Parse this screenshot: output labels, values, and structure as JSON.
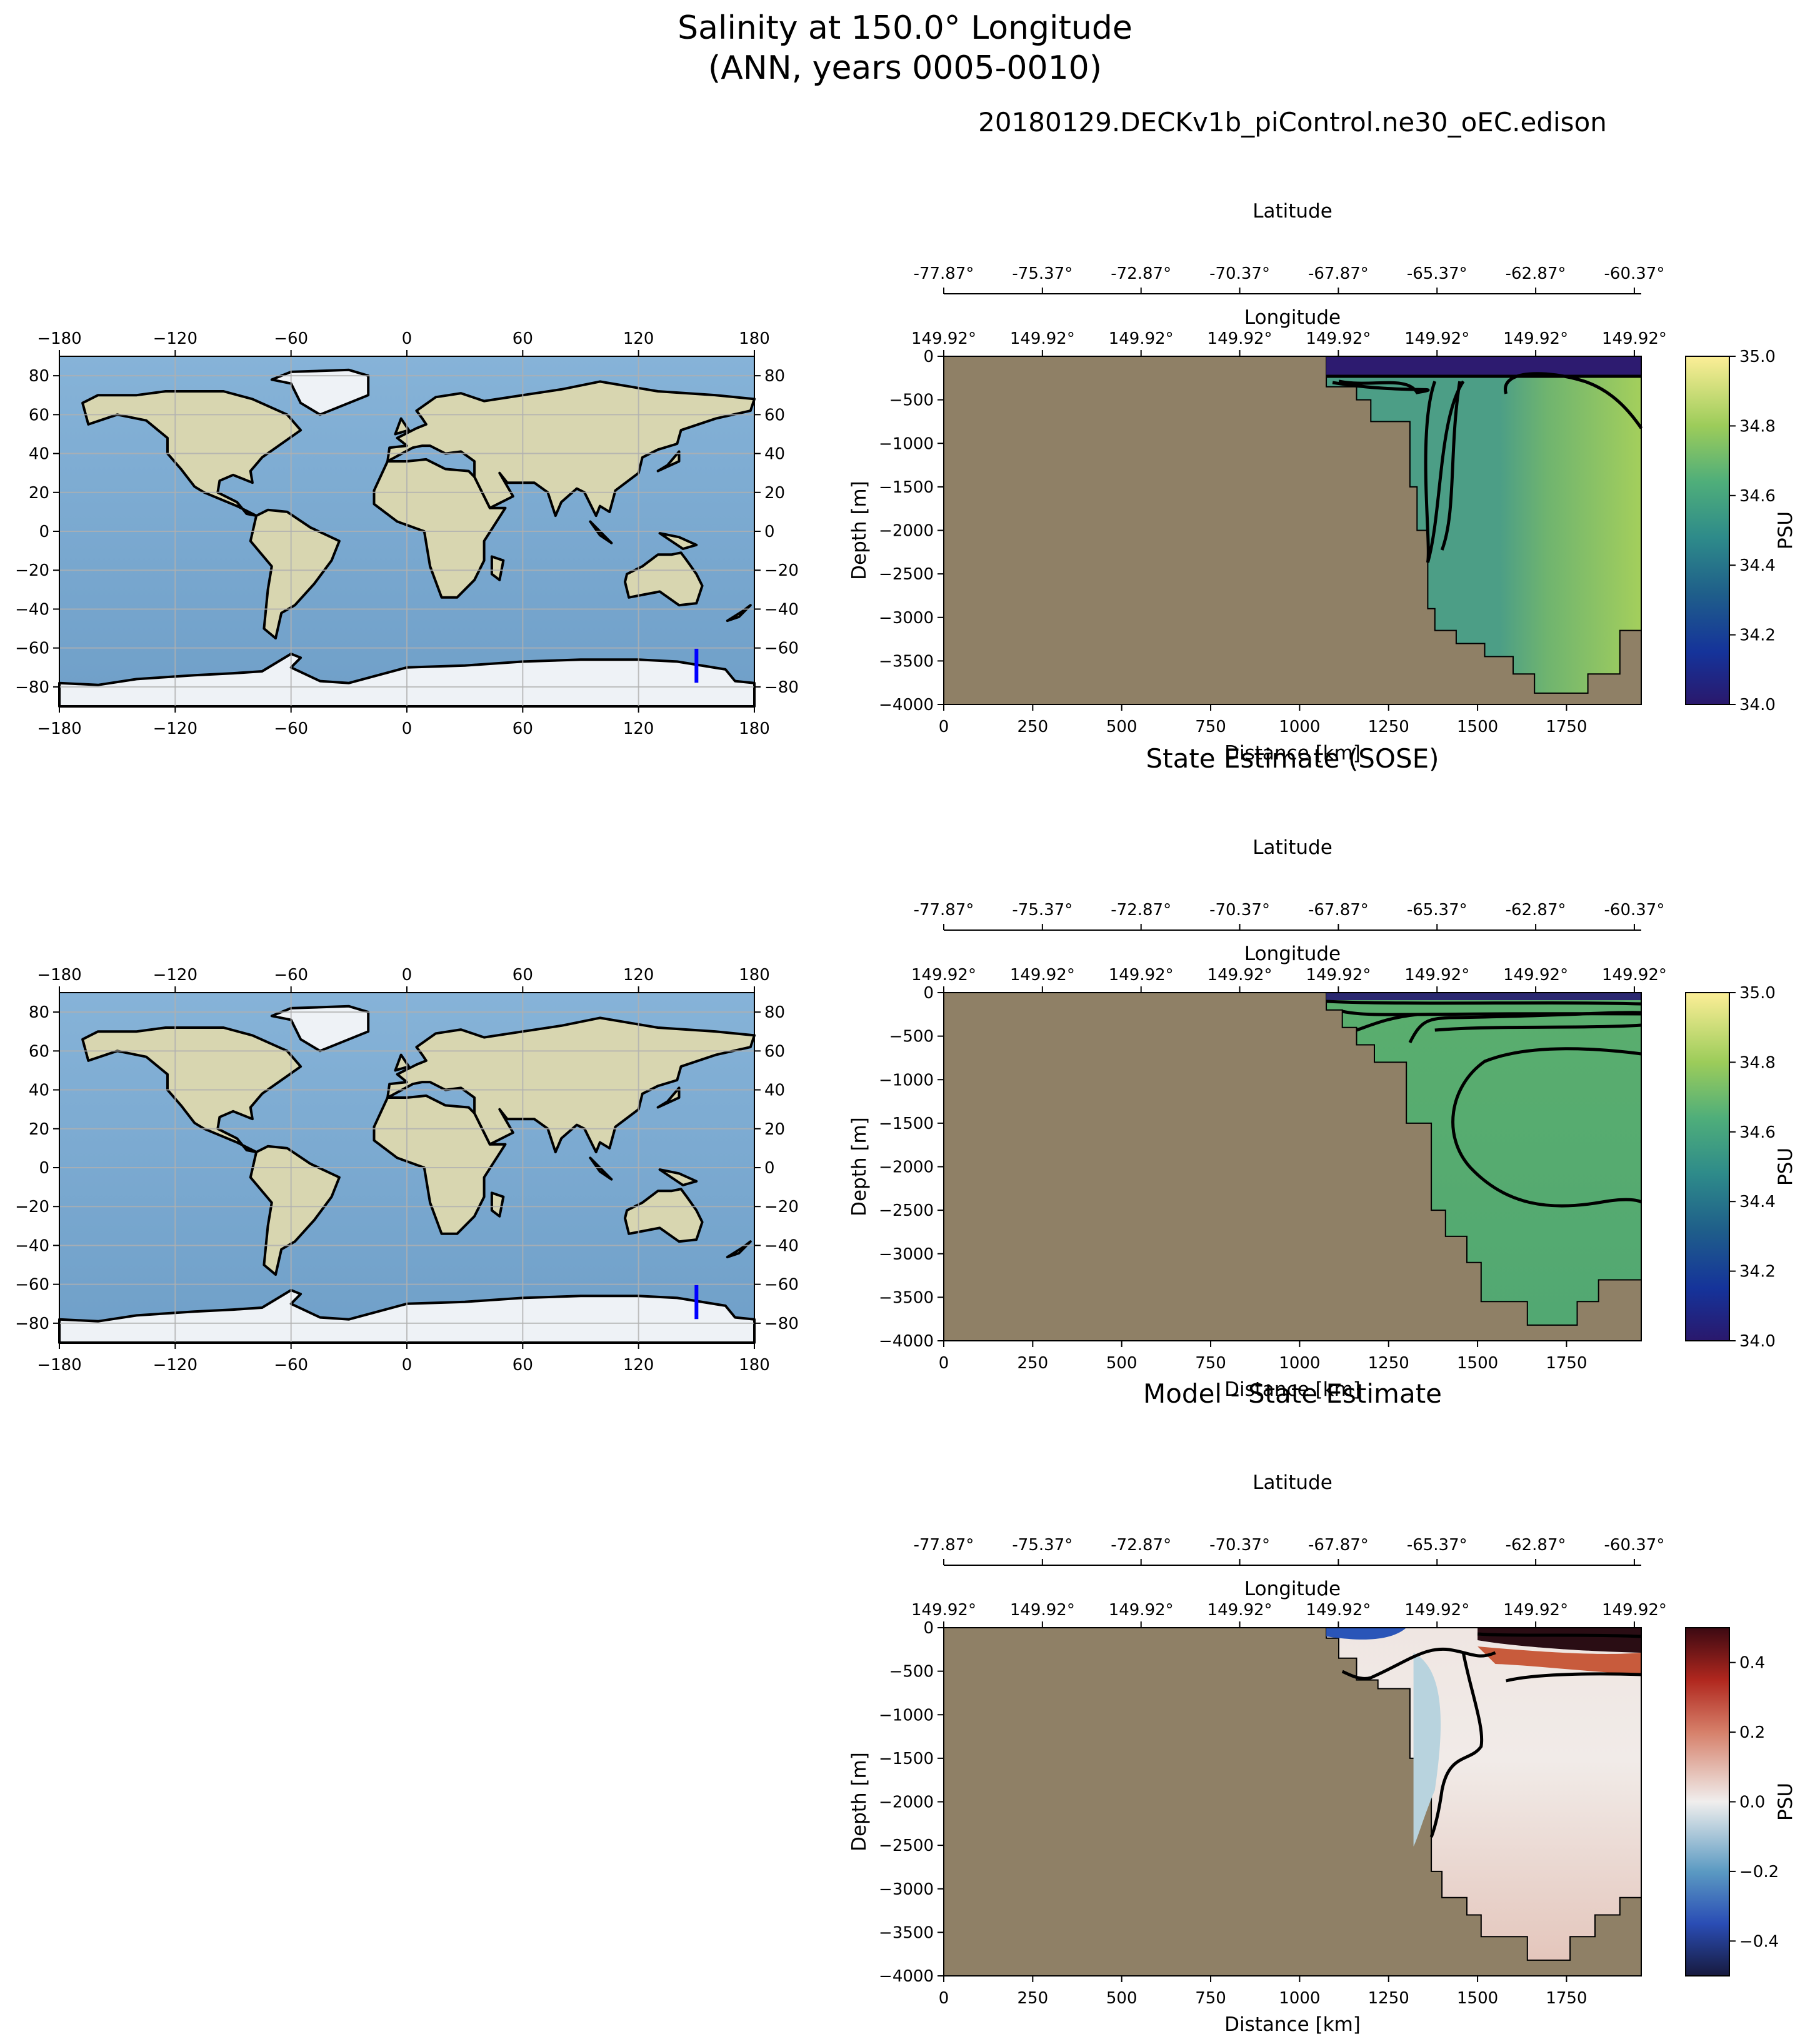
{
  "figure": {
    "suptitle_line1": "Salinity at 150.0° Longitude",
    "suptitle_line2": "(ANN, years 0005-0010)"
  },
  "colors": {
    "land": "#8f8066",
    "ocean_map": "#7aa6cc",
    "map_land": "#d8d6b0",
    "map_ice": "#eef2f6",
    "transect_line": "#0000ff"
  },
  "maps": {
    "xticks": [
      "−180",
      "−120",
      "−60",
      "0",
      "60",
      "120",
      "180"
    ],
    "yticks": [
      "80",
      "60",
      "40",
      "20",
      "0",
      "−20",
      "−40",
      "−60",
      "−80"
    ],
    "transect": {
      "lon": 150,
      "lat_start": -77.87,
      "lat_end": -60.37
    }
  },
  "chart_data": [
    {
      "type": "heatmap",
      "title": "20180129.DECKv1b_piControl.ne30_oEC.edison",
      "xlabel": "Distance [km]",
      "ylabel": "Depth [m]",
      "top_axis1_label": "Latitude",
      "top_axis2_label": "Longitude",
      "lat_ticks": [
        "-77.87°",
        "-75.37°",
        "-72.87°",
        "-70.37°",
        "-67.87°",
        "-65.37°",
        "-62.87°",
        "-60.37°"
      ],
      "lon_ticks": [
        "149.92°",
        "149.92°",
        "149.92°",
        "149.92°",
        "149.92°",
        "149.92°",
        "149.92°",
        "149.92°"
      ],
      "xticks": [
        "0",
        "250",
        "500",
        "750",
        "1000",
        "1250",
        "1500",
        "1750"
      ],
      "yticks": [
        "0",
        "−500",
        "−1000",
        "−1500",
        "−2000",
        "−2500",
        "−3000",
        "−3500",
        "−4000"
      ],
      "xlim": [
        0,
        1960
      ],
      "ylim": [
        -4000,
        0
      ],
      "colorbar": {
        "label": "PSU",
        "ticks": [
          "34.0",
          "34.2",
          "34.4",
          "34.6",
          "34.8",
          "35.0"
        ],
        "vmin": 34.0,
        "vmax": 35.0,
        "colormap": "haline"
      },
      "ocean_boundary_km_depth": [
        [
          1075,
          0
        ],
        [
          1075,
          -350
        ],
        [
          1160,
          -350
        ],
        [
          1160,
          -500
        ],
        [
          1200,
          -500
        ],
        [
          1200,
          -750
        ],
        [
          1310,
          -750
        ],
        [
          1310,
          -1500
        ],
        [
          1330,
          -1500
        ],
        [
          1330,
          -2000
        ],
        [
          1360,
          -2000
        ],
        [
          1360,
          -2900
        ],
        [
          1380,
          -2900
        ],
        [
          1380,
          -3150
        ],
        [
          1440,
          -3150
        ],
        [
          1440,
          -3300
        ],
        [
          1520,
          -3300
        ],
        [
          1520,
          -3450
        ],
        [
          1600,
          -3450
        ],
        [
          1600,
          -3650
        ],
        [
          1660,
          -3650
        ],
        [
          1660,
          -3870
        ],
        [
          1810,
          -3870
        ],
        [
          1810,
          -3650
        ],
        [
          1900,
          -3650
        ],
        [
          1900,
          -3150
        ],
        [
          1960,
          -3150
        ],
        [
          1960,
          0
        ]
      ]
    },
    {
      "type": "heatmap",
      "title": "State Estimate (SOSE)",
      "xlabel": "Distance [km]",
      "ylabel": "Depth [m]",
      "top_axis1_label": "Latitude",
      "top_axis2_label": "Longitude",
      "lat_ticks": [
        "-77.87°",
        "-75.37°",
        "-72.87°",
        "-70.37°",
        "-67.87°",
        "-65.37°",
        "-62.87°",
        "-60.37°"
      ],
      "lon_ticks": [
        "149.92°",
        "149.92°",
        "149.92°",
        "149.92°",
        "149.92°",
        "149.92°",
        "149.92°",
        "149.92°"
      ],
      "xticks": [
        "0",
        "250",
        "500",
        "750",
        "1000",
        "1250",
        "1500",
        "1750"
      ],
      "yticks": [
        "0",
        "−500",
        "−1000",
        "−1500",
        "−2000",
        "−2500",
        "−3000",
        "−3500",
        "−4000"
      ],
      "xlim": [
        0,
        1960
      ],
      "ylim": [
        -4000,
        0
      ],
      "colorbar": {
        "label": "PSU",
        "ticks": [
          "34.0",
          "34.2",
          "34.4",
          "34.6",
          "34.8",
          "35.0"
        ],
        "vmin": 34.0,
        "vmax": 35.0,
        "colormap": "haline"
      },
      "ocean_boundary_km_depth": [
        [
          1075,
          0
        ],
        [
          1075,
          -200
        ],
        [
          1120,
          -200
        ],
        [
          1120,
          -400
        ],
        [
          1160,
          -400
        ],
        [
          1160,
          -600
        ],
        [
          1210,
          -600
        ],
        [
          1210,
          -800
        ],
        [
          1300,
          -800
        ],
        [
          1300,
          -1500
        ],
        [
          1370,
          -1500
        ],
        [
          1370,
          -2500
        ],
        [
          1410,
          -2500
        ],
        [
          1410,
          -2800
        ],
        [
          1470,
          -2800
        ],
        [
          1470,
          -3100
        ],
        [
          1510,
          -3100
        ],
        [
          1510,
          -3550
        ],
        [
          1640,
          -3550
        ],
        [
          1640,
          -3820
        ],
        [
          1780,
          -3820
        ],
        [
          1780,
          -3550
        ],
        [
          1840,
          -3550
        ],
        [
          1840,
          -3300
        ],
        [
          1960,
          -3300
        ],
        [
          1960,
          0
        ]
      ]
    },
    {
      "type": "heatmap",
      "title": "Model - State Estimate",
      "xlabel": "Distance [km]",
      "ylabel": "Depth [m]",
      "top_axis1_label": "Latitude",
      "top_axis2_label": "Longitude",
      "lat_ticks": [
        "-77.87°",
        "-75.37°",
        "-72.87°",
        "-70.37°",
        "-67.87°",
        "-65.37°",
        "-62.87°",
        "-60.37°"
      ],
      "lon_ticks": [
        "149.92°",
        "149.92°",
        "149.92°",
        "149.92°",
        "149.92°",
        "149.92°",
        "149.92°",
        "149.92°"
      ],
      "xticks": [
        "0",
        "250",
        "500",
        "750",
        "1000",
        "1250",
        "1500",
        "1750"
      ],
      "yticks": [
        "0",
        "−500",
        "−1000",
        "−1500",
        "−2000",
        "−2500",
        "−3000",
        "−3500",
        "−4000"
      ],
      "xlim": [
        0,
        1960
      ],
      "ylim": [
        -4000,
        0
      ],
      "colorbar": {
        "label": "PSU",
        "ticks": [
          "0.4",
          "0.2",
          "0.0",
          "−0.2",
          "−0.4"
        ],
        "tick_values": [
          0.4,
          0.2,
          0.0,
          -0.2,
          -0.4
        ],
        "vmin": -0.5,
        "vmax": 0.5,
        "colormap": "balance"
      },
      "ocean_boundary_km_depth": [
        [
          1075,
          0
        ],
        [
          1075,
          -120
        ],
        [
          1110,
          -120
        ],
        [
          1110,
          -350
        ],
        [
          1160,
          -350
        ],
        [
          1160,
          -600
        ],
        [
          1220,
          -600
        ],
        [
          1220,
          -700
        ],
        [
          1310,
          -700
        ],
        [
          1310,
          -1500
        ],
        [
          1370,
          -1500
        ],
        [
          1370,
          -2800
        ],
        [
          1400,
          -2800
        ],
        [
          1400,
          -3100
        ],
        [
          1470,
          -3100
        ],
        [
          1470,
          -3300
        ],
        [
          1510,
          -3300
        ],
        [
          1510,
          -3550
        ],
        [
          1640,
          -3550
        ],
        [
          1640,
          -3820
        ],
        [
          1760,
          -3820
        ],
        [
          1760,
          -3550
        ],
        [
          1830,
          -3550
        ],
        [
          1830,
          -3300
        ],
        [
          1900,
          -3300
        ],
        [
          1900,
          -3100
        ],
        [
          1960,
          -3100
        ],
        [
          1960,
          0
        ]
      ]
    }
  ]
}
